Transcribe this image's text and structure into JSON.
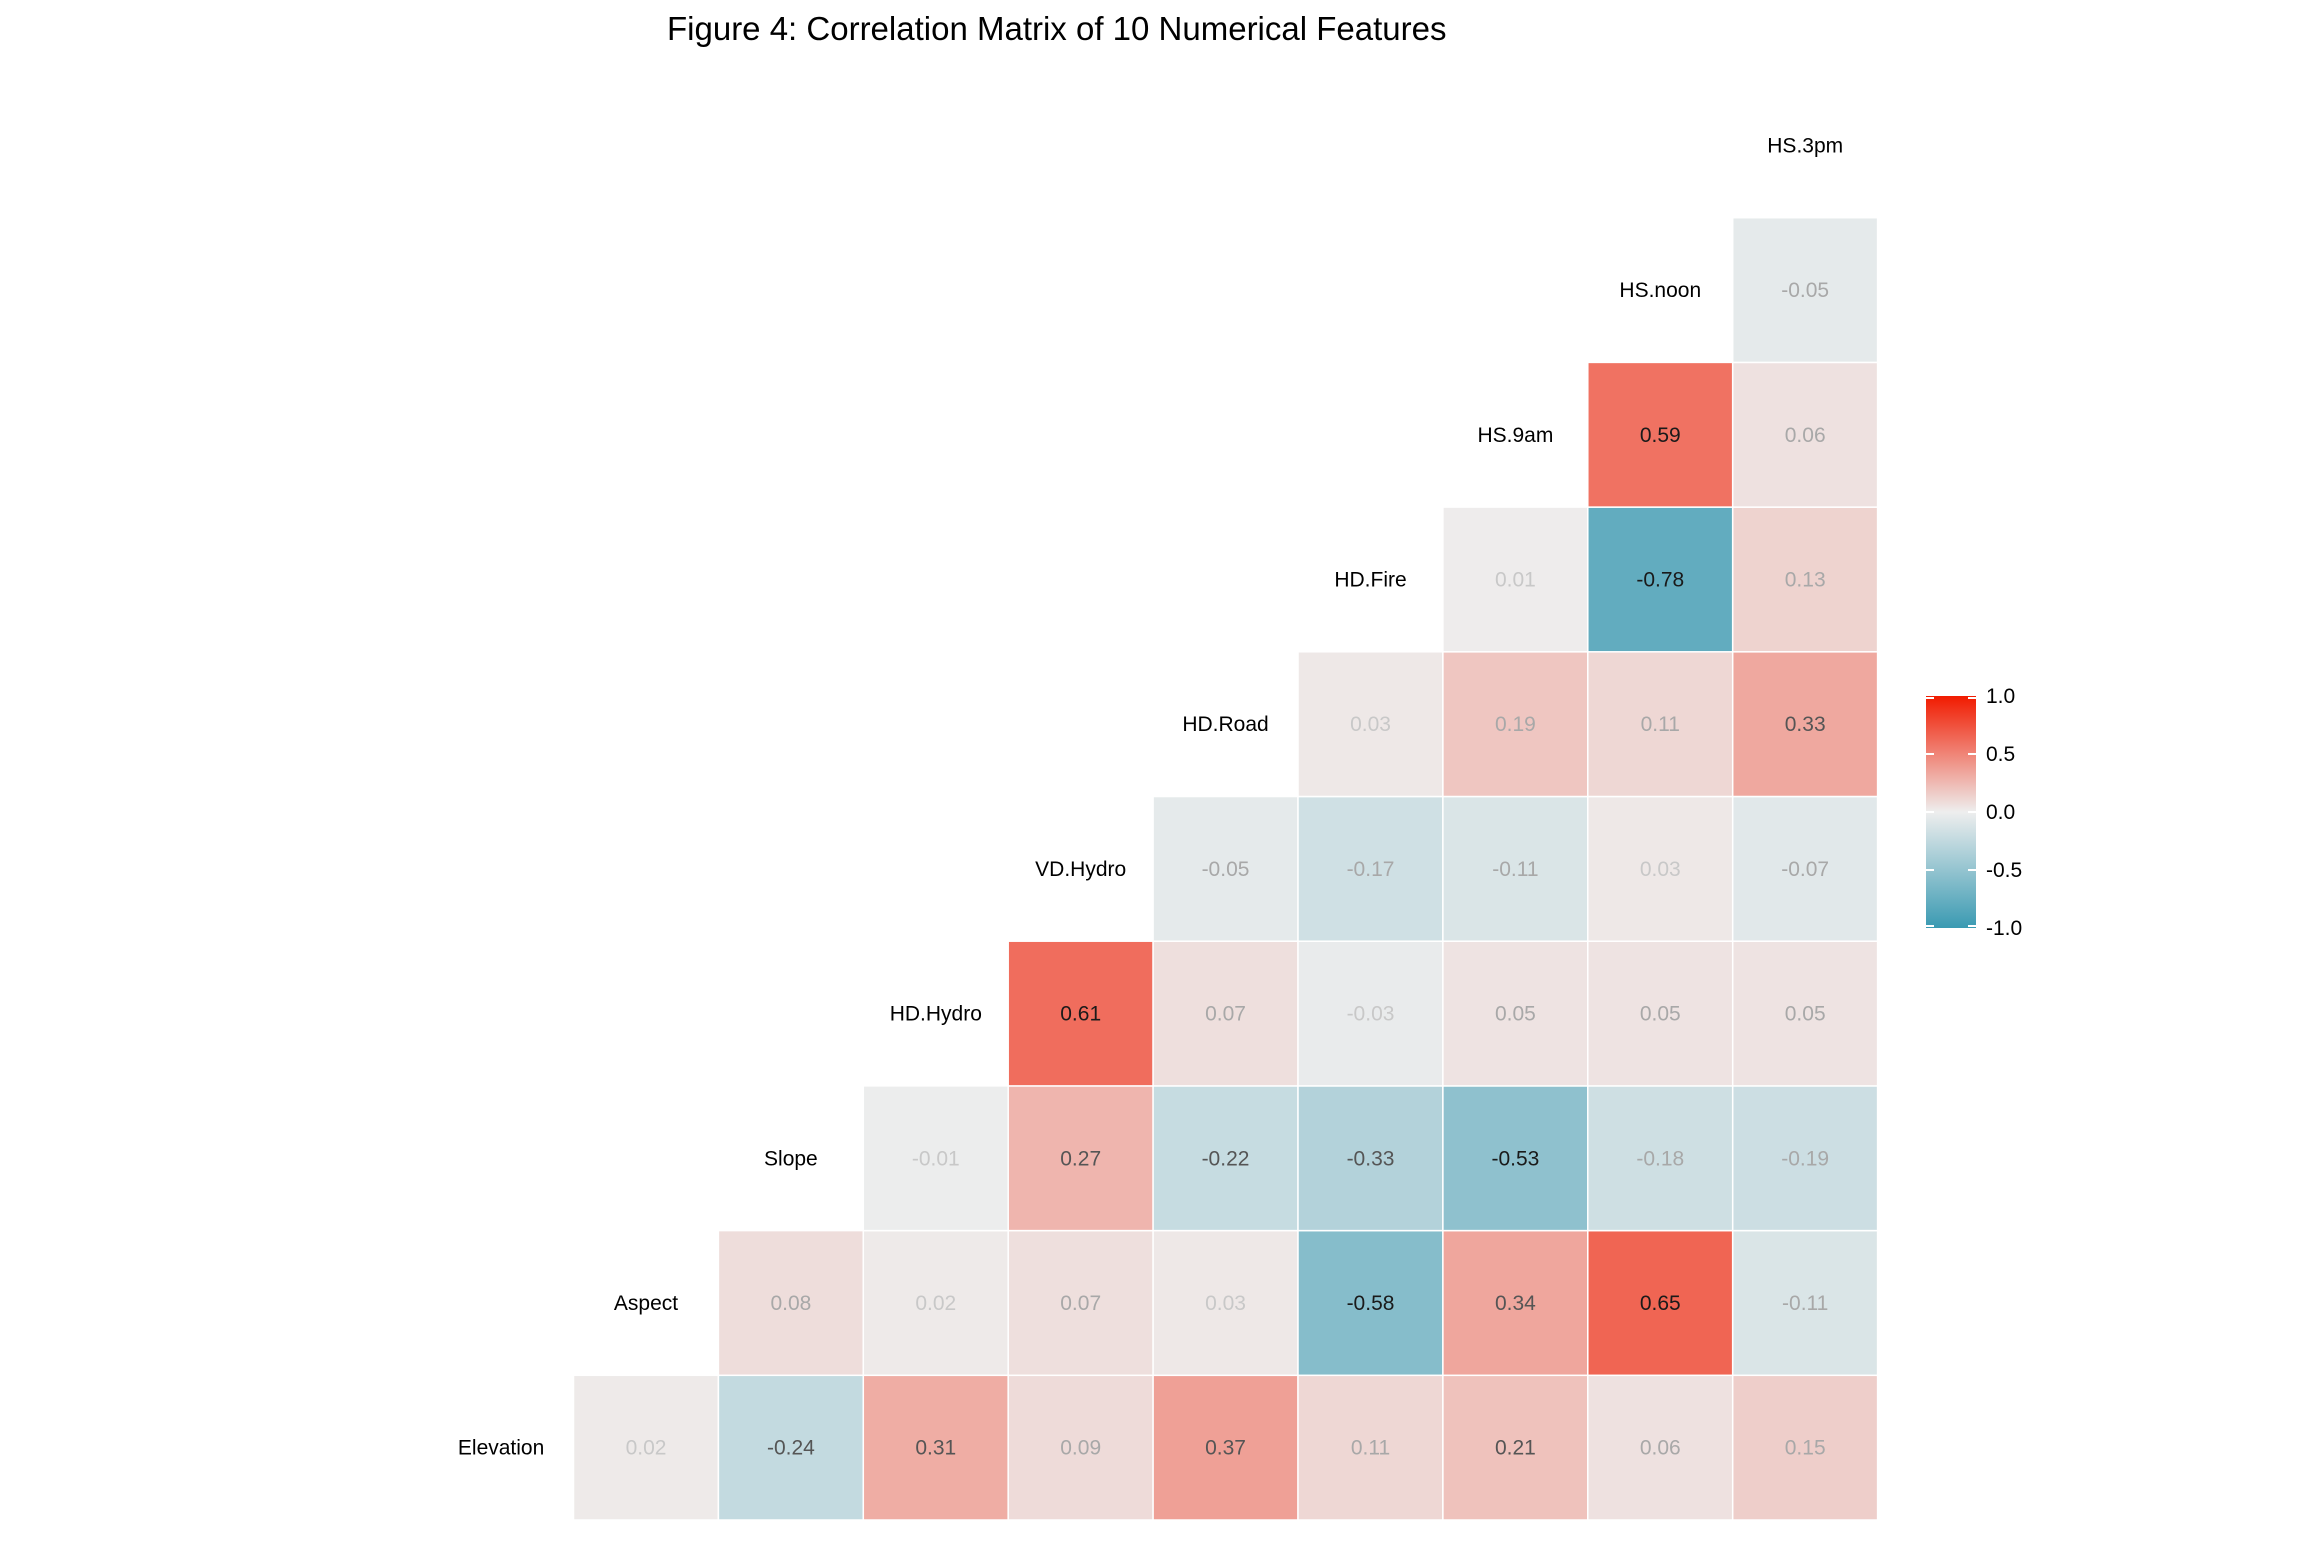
{
  "chart_data": {
    "type": "heatmap",
    "title": "Figure  4: Correlation Matrix of 10 Numerical Features",
    "variables": [
      "Elevation",
      "Aspect",
      "Slope",
      "HD.Hydro",
      "VD.Hydro",
      "HD.Road",
      "HD.Fire",
      "HS.9am",
      "HS.noon",
      "HS.3pm"
    ],
    "matrix": [
      [
        null,
        null,
        null,
        null,
        null,
        null,
        null,
        null,
        null,
        null
      ],
      [
        0.02,
        null,
        null,
        null,
        null,
        null,
        null,
        null,
        null,
        null
      ],
      [
        -0.24,
        0.08,
        null,
        null,
        null,
        null,
        null,
        null,
        null,
        null
      ],
      [
        0.31,
        0.02,
        -0.01,
        null,
        null,
        null,
        null,
        null,
        null,
        null
      ],
      [
        0.09,
        0.07,
        0.27,
        0.61,
        null,
        null,
        null,
        null,
        null,
        null
      ],
      [
        0.37,
        0.03,
        -0.22,
        0.07,
        -0.05,
        null,
        null,
        null,
        null,
        null
      ],
      [
        0.11,
        -0.58,
        -0.33,
        -0.03,
        -0.17,
        0.03,
        null,
        null,
        null,
        null
      ],
      [
        0.21,
        0.34,
        -0.53,
        0.05,
        -0.11,
        0.19,
        0.01,
        null,
        null,
        null
      ],
      [
        0.06,
        0.65,
        -0.18,
        0.05,
        0.03,
        0.11,
        -0.78,
        0.59,
        null,
        null
      ],
      [
        0.15,
        -0.11,
        -0.19,
        0.05,
        -0.07,
        0.33,
        0.13,
        0.06,
        -0.05,
        null
      ]
    ],
    "color_scale": {
      "low": "#3a9ab2",
      "mid": "#eeeeee",
      "high": "#f11b00",
      "domain": [
        -1,
        1
      ]
    },
    "legend": {
      "ticks": [
        "1.0",
        "0.5",
        "0.0",
        "-0.5",
        "-1.0"
      ],
      "tick_values": [
        1,
        0.5,
        0,
        -0.5,
        -1
      ],
      "position": "right"
    },
    "grid": false
  }
}
